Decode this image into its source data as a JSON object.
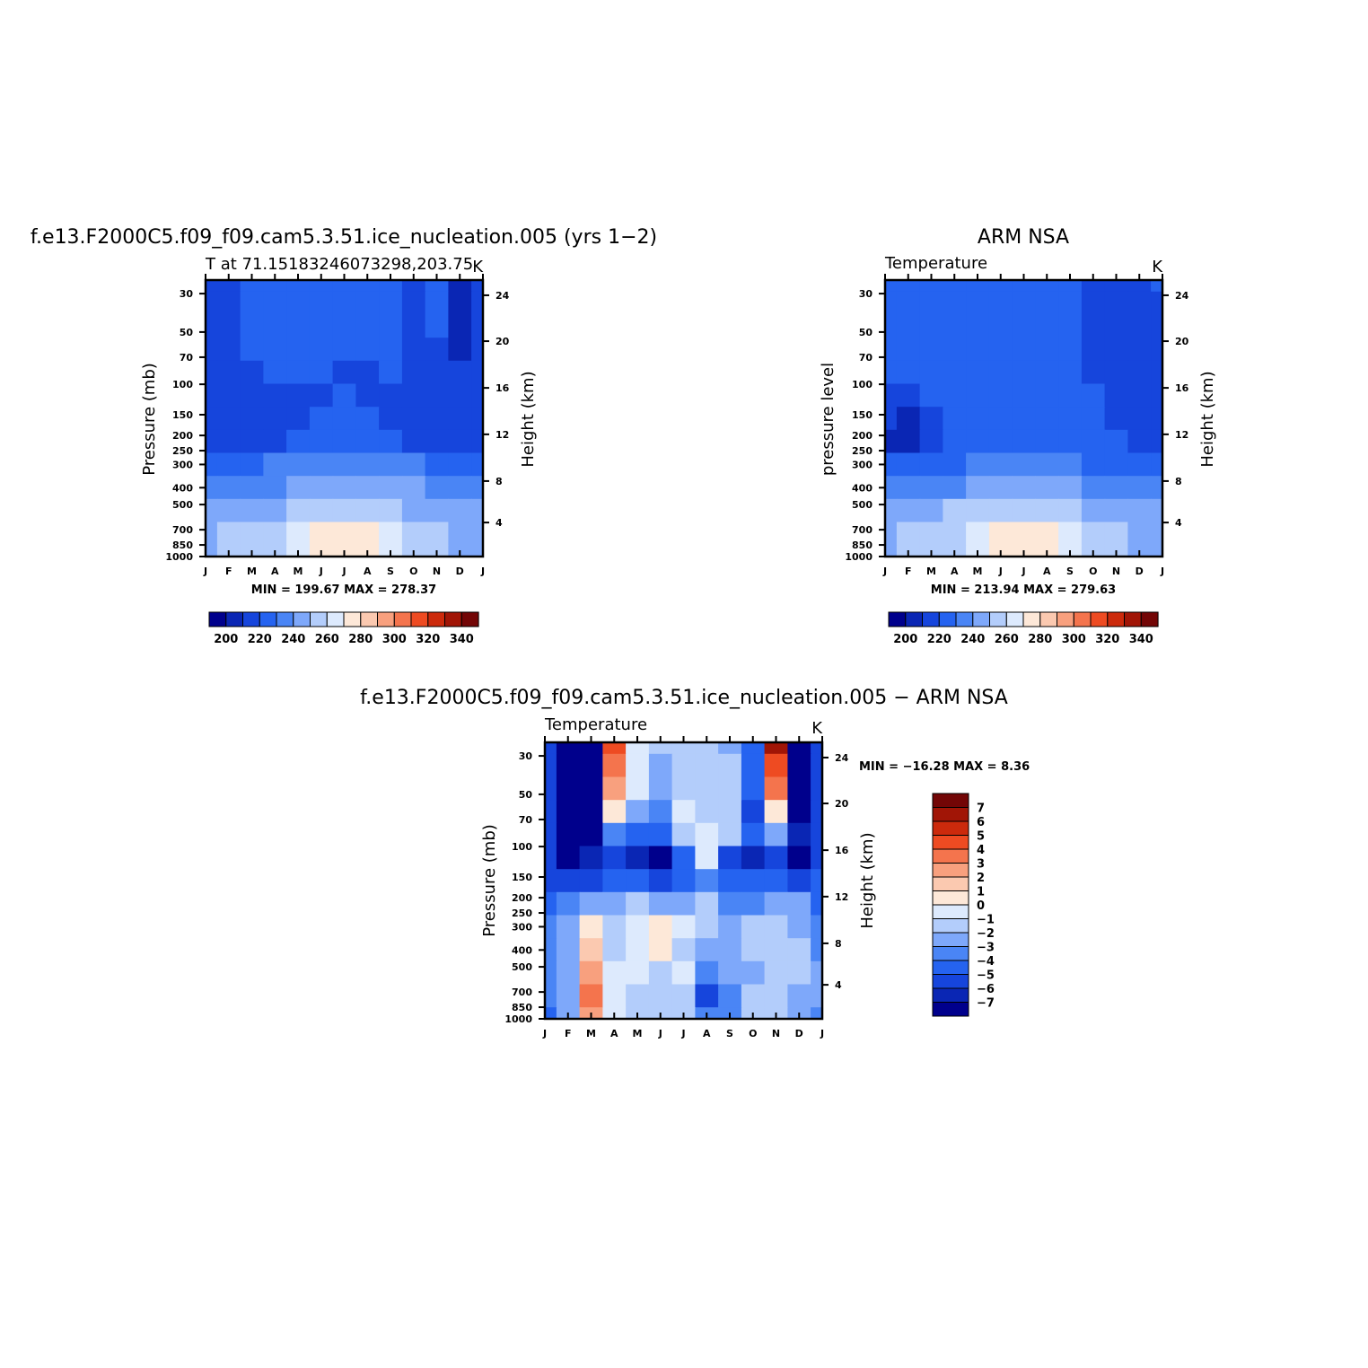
{
  "colors": {
    "t_levels": [
      "#00008c",
      "#0a26b4",
      "#1645dc",
      "#2563f0",
      "#4a85f5",
      "#7ea8fa",
      "#b3cdfb",
      "#ddeafd",
      "#fde8d8",
      "#fbc9b0",
      "#f8a07e",
      "#f4744d",
      "#ee4b22",
      "#cc2a0c",
      "#a11506",
      "#730606"
    ],
    "d_levels": [
      "#00008c",
      "#0a26b4",
      "#1645dc",
      "#2563f0",
      "#4a85f5",
      "#7ea8fa",
      "#b3cdfb",
      "#ddeafd",
      "#fde8d8",
      "#fbc9b0",
      "#f8a07e",
      "#f4744d",
      "#ee4b22",
      "#cc2a0c",
      "#a11506",
      "#730606"
    ]
  },
  "panels": {
    "model": {
      "title": "f.e13.F2000C5.f09_f09.cam5.3.51.ice_nucleation.005 (yrs 1−2)",
      "subtitle_left": "T at 71.15183246073298,203.75",
      "subtitle_right": "K",
      "ylabel": "Pressure (mb)",
      "ylabel_right": "Height (km)",
      "stats": "MIN = 199.67 MAX = 278.37"
    },
    "obs": {
      "title": "ARM NSA",
      "subtitle_left": "Temperature",
      "subtitle_right": "K",
      "ylabel": "pressure level",
      "ylabel_right": "Height (km)",
      "stats": "MIN = 213.94 MAX = 279.63"
    },
    "diff": {
      "title": "f.e13.F2000C5.f09_f09.cam5.3.51.ice_nucleation.005 − ARM NSA",
      "subtitle_left": "Temperature",
      "subtitle_right": "K",
      "ylabel": "Pressure (mb)",
      "ylabel_right": "Height (km)",
      "stats": "MIN = −16.28 MAX =    8.36"
    }
  },
  "chart_data": [
    {
      "type": "heatmap",
      "name": "model",
      "x": [
        "J",
        "F",
        "M",
        "A",
        "M",
        "J",
        "J",
        "A",
        "S",
        "O",
        "N",
        "D",
        "J"
      ],
      "y_pressure_ticks": [
        "30",
        "50",
        "70",
        "100",
        "150",
        "200",
        "250",
        "300",
        "400",
        "500",
        "700",
        "850",
        "1000"
      ],
      "y_height_ticks": [
        "4",
        "8",
        "12",
        "16",
        "20",
        "24"
      ],
      "colorbar_labels": [
        "200",
        "220",
        "240",
        "260",
        "280",
        "300",
        "320",
        "340"
      ],
      "colorbar_bins": 16,
      "min": 199.67,
      "max": 278.37,
      "field": [
        [
          2,
          2,
          3,
          3,
          3,
          3,
          3,
          3,
          3,
          2,
          3,
          1,
          2
        ],
        [
          2,
          2,
          3,
          3,
          3,
          3,
          3,
          3,
          3,
          2,
          3,
          1,
          2
        ],
        [
          2,
          2,
          3,
          3,
          3,
          3,
          3,
          3,
          3,
          2,
          3,
          1,
          2
        ],
        [
          2,
          2,
          3,
          3,
          3,
          3,
          3,
          3,
          3,
          2,
          2,
          1,
          2
        ],
        [
          2,
          2,
          2,
          3,
          3,
          3,
          2,
          2,
          3,
          2,
          2,
          2,
          2
        ],
        [
          2,
          2,
          2,
          2,
          2,
          2,
          3,
          2,
          2,
          2,
          2,
          2,
          2
        ],
        [
          2,
          2,
          2,
          2,
          2,
          3,
          3,
          3,
          2,
          2,
          2,
          2,
          2
        ],
        [
          2,
          2,
          2,
          2,
          3,
          3,
          3,
          3,
          3,
          2,
          2,
          2,
          2
        ],
        [
          3,
          3,
          3,
          4,
          4,
          4,
          4,
          4,
          4,
          4,
          3,
          3,
          3
        ],
        [
          4,
          4,
          4,
          4,
          5,
          5,
          5,
          5,
          5,
          5,
          4,
          4,
          4
        ],
        [
          5,
          5,
          5,
          5,
          6,
          6,
          6,
          6,
          6,
          5,
          5,
          5,
          5
        ],
        [
          5,
          6,
          6,
          6,
          7,
          8,
          8,
          8,
          7,
          6,
          6,
          5,
          5
        ],
        [
          5,
          6,
          6,
          6,
          7,
          8,
          8,
          8,
          7,
          6,
          6,
          5,
          5
        ]
      ]
    },
    {
      "type": "heatmap",
      "name": "obs",
      "x": [
        "J",
        "F",
        "M",
        "A",
        "M",
        "J",
        "J",
        "A",
        "S",
        "O",
        "N",
        "D",
        "J"
      ],
      "y_pressure_ticks": [
        "30",
        "50",
        "70",
        "100",
        "150",
        "200",
        "250",
        "300",
        "400",
        "500",
        "700",
        "850",
        "1000"
      ],
      "y_height_ticks": [
        "4",
        "8",
        "12",
        "16",
        "20",
        "24"
      ],
      "colorbar_labels": [
        "200",
        "220",
        "240",
        "260",
        "280",
        "300",
        "320",
        "340"
      ],
      "colorbar_bins": 16,
      "min": 213.94,
      "max": 279.63,
      "field": [
        [
          3,
          3,
          3,
          3,
          3,
          3,
          3,
          3,
          3,
          2,
          2,
          2,
          3
        ],
        [
          3,
          3,
          3,
          3,
          3,
          3,
          3,
          3,
          3,
          2,
          2,
          2,
          2
        ],
        [
          3,
          3,
          3,
          3,
          3,
          3,
          3,
          3,
          3,
          2,
          2,
          2,
          2
        ],
        [
          3,
          3,
          3,
          3,
          3,
          3,
          3,
          3,
          3,
          2,
          2,
          2,
          2
        ],
        [
          3,
          3,
          3,
          3,
          3,
          3,
          3,
          3,
          3,
          2,
          2,
          2,
          2
        ],
        [
          2,
          2,
          3,
          3,
          3,
          3,
          3,
          3,
          3,
          3,
          2,
          2,
          2
        ],
        [
          2,
          1,
          2,
          3,
          3,
          3,
          3,
          3,
          3,
          3,
          2,
          2,
          2
        ],
        [
          1,
          1,
          2,
          3,
          3,
          3,
          3,
          3,
          3,
          3,
          3,
          2,
          2
        ],
        [
          3,
          3,
          3,
          3,
          4,
          4,
          4,
          4,
          4,
          3,
          3,
          3,
          3
        ],
        [
          4,
          4,
          4,
          4,
          5,
          5,
          5,
          5,
          5,
          4,
          4,
          4,
          4
        ],
        [
          5,
          5,
          5,
          6,
          6,
          6,
          6,
          6,
          6,
          5,
          5,
          5,
          5
        ],
        [
          5,
          6,
          6,
          6,
          7,
          8,
          8,
          8,
          7,
          6,
          6,
          5,
          5
        ],
        [
          5,
          6,
          6,
          6,
          7,
          8,
          8,
          8,
          7,
          6,
          6,
          5,
          5
        ]
      ]
    },
    {
      "type": "heatmap",
      "name": "diff",
      "x": [
        "J",
        "F",
        "M",
        "A",
        "M",
        "J",
        "J",
        "A",
        "S",
        "O",
        "N",
        "D",
        "J"
      ],
      "y_pressure_ticks": [
        "30",
        "50",
        "70",
        "100",
        "150",
        "200",
        "250",
        "300",
        "400",
        "500",
        "700",
        "850",
        "1000"
      ],
      "y_height_ticks": [
        "4",
        "8",
        "12",
        "16",
        "20",
        "24"
      ],
      "colorbar_labels": [
        "7",
        "6",
        "5",
        "4",
        "3",
        "2",
        "1",
        "0",
        "−1",
        "−2",
        "−3",
        "−4",
        "−5",
        "−6",
        "−7"
      ],
      "colorbar_bins": 16,
      "min": -16.28,
      "max": 8.36,
      "field": [
        [
          2,
          0,
          0,
          12,
          7,
          6,
          6,
          6,
          5,
          3,
          14,
          0,
          2
        ],
        [
          2,
          0,
          0,
          11,
          7,
          5,
          6,
          6,
          6,
          3,
          12,
          0,
          2
        ],
        [
          2,
          0,
          0,
          10,
          7,
          5,
          6,
          6,
          6,
          3,
          11,
          0,
          2
        ],
        [
          2,
          0,
          0,
          8,
          5,
          4,
          7,
          6,
          6,
          2,
          8,
          0,
          2
        ],
        [
          2,
          0,
          0,
          4,
          3,
          3,
          6,
          7,
          6,
          3,
          5,
          1,
          2
        ],
        [
          2,
          0,
          1,
          2,
          1,
          0,
          3,
          7,
          2,
          1,
          2,
          0,
          2
        ],
        [
          2,
          2,
          2,
          3,
          3,
          2,
          3,
          4,
          3,
          3,
          3,
          2,
          3
        ],
        [
          3,
          4,
          5,
          5,
          6,
          5,
          5,
          6,
          4,
          4,
          5,
          5,
          3
        ],
        [
          4,
          5,
          8,
          6,
          7,
          8,
          7,
          6,
          5,
          6,
          6,
          5,
          4
        ],
        [
          4,
          5,
          9,
          6,
          7,
          8,
          6,
          5,
          5,
          6,
          6,
          6,
          4
        ],
        [
          4,
          5,
          10,
          7,
          7,
          6,
          7,
          4,
          5,
          5,
          6,
          6,
          5
        ],
        [
          4,
          5,
          11,
          7,
          6,
          6,
          6,
          2,
          4,
          6,
          6,
          5,
          5
        ],
        [
          3,
          5,
          10,
          7,
          6,
          6,
          6,
          4,
          4,
          6,
          6,
          5,
          4
        ]
      ]
    }
  ]
}
